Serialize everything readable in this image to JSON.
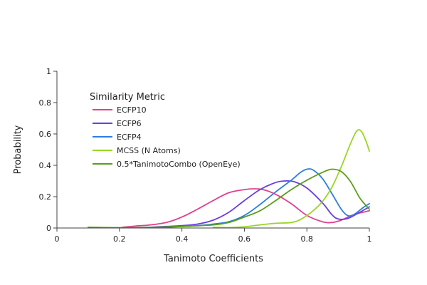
{
  "chart_data": {
    "type": "line",
    "title": "",
    "xlabel": "Tanimoto Coefficients",
    "ylabel": "Probability",
    "xlim": [
      0,
      1
    ],
    "ylim": [
      0,
      1
    ],
    "x_ticks": [
      "0",
      "0.2",
      "0.4",
      "0.6",
      "0.8",
      "1"
    ],
    "y_ticks": [
      "0",
      "0.2",
      "0.4",
      "0.6",
      "0.8",
      "1"
    ],
    "grid": false,
    "legend": {
      "title": "Similarity Metric",
      "position": "top-left"
    },
    "series": [
      {
        "name": "ECFP10",
        "color": "#e0408f",
        "points": [
          [
            0.21,
            0.005
          ],
          [
            0.25,
            0.012
          ],
          [
            0.3,
            0.02
          ],
          [
            0.35,
            0.035
          ],
          [
            0.4,
            0.07
          ],
          [
            0.45,
            0.12
          ],
          [
            0.5,
            0.175
          ],
          [
            0.55,
            0.225
          ],
          [
            0.6,
            0.245
          ],
          [
            0.63,
            0.25
          ],
          [
            0.66,
            0.245
          ],
          [
            0.7,
            0.215
          ],
          [
            0.75,
            0.155
          ],
          [
            0.8,
            0.08
          ],
          [
            0.85,
            0.04
          ],
          [
            0.88,
            0.035
          ],
          [
            0.91,
            0.05
          ],
          [
            0.95,
            0.085
          ],
          [
            1.0,
            0.11
          ]
        ]
      },
      {
        "name": "ECFP6",
        "color": "#6a3de0",
        "points": [
          [
            0.26,
            0.002
          ],
          [
            0.3,
            0.005
          ],
          [
            0.35,
            0.01
          ],
          [
            0.4,
            0.015
          ],
          [
            0.45,
            0.025
          ],
          [
            0.5,
            0.05
          ],
          [
            0.55,
            0.1
          ],
          [
            0.6,
            0.175
          ],
          [
            0.65,
            0.245
          ],
          [
            0.7,
            0.29
          ],
          [
            0.73,
            0.3
          ],
          [
            0.76,
            0.295
          ],
          [
            0.8,
            0.255
          ],
          [
            0.85,
            0.16
          ],
          [
            0.88,
            0.085
          ],
          [
            0.9,
            0.058
          ],
          [
            0.93,
            0.06
          ],
          [
            0.96,
            0.09
          ],
          [
            1.0,
            0.135
          ]
        ]
      },
      {
        "name": "ECFP4",
        "color": "#2a7ee0",
        "points": [
          [
            0.32,
            0.003
          ],
          [
            0.38,
            0.008
          ],
          [
            0.45,
            0.015
          ],
          [
            0.5,
            0.025
          ],
          [
            0.55,
            0.04
          ],
          [
            0.6,
            0.08
          ],
          [
            0.65,
            0.15
          ],
          [
            0.7,
            0.23
          ],
          [
            0.75,
            0.305
          ],
          [
            0.78,
            0.355
          ],
          [
            0.8,
            0.375
          ],
          [
            0.82,
            0.37
          ],
          [
            0.85,
            0.315
          ],
          [
            0.88,
            0.22
          ],
          [
            0.91,
            0.12
          ],
          [
            0.93,
            0.08
          ],
          [
            0.95,
            0.085
          ],
          [
            0.98,
            0.13
          ],
          [
            1.0,
            0.155
          ]
        ]
      },
      {
        "name": "MCSS (N Atoms)",
        "color": "#9ad626",
        "points": [
          [
            0.5,
            0.005
          ],
          [
            0.55,
            0.003
          ],
          [
            0.6,
            0.008
          ],
          [
            0.65,
            0.02
          ],
          [
            0.7,
            0.03
          ],
          [
            0.75,
            0.035
          ],
          [
            0.78,
            0.055
          ],
          [
            0.82,
            0.11
          ],
          [
            0.85,
            0.17
          ],
          [
            0.88,
            0.26
          ],
          [
            0.91,
            0.39
          ],
          [
            0.94,
            0.54
          ],
          [
            0.96,
            0.62
          ],
          [
            0.975,
            0.615
          ],
          [
            0.99,
            0.55
          ],
          [
            1.0,
            0.49
          ]
        ]
      },
      {
        "name": "0.5*TanimotoCombo (OpenEye)",
        "color": "#5a9e1a",
        "points": [
          [
            0.1,
            0.005
          ],
          [
            0.15,
            0.003
          ],
          [
            0.2,
            0.002
          ],
          [
            0.3,
            0.004
          ],
          [
            0.4,
            0.01
          ],
          [
            0.5,
            0.02
          ],
          [
            0.55,
            0.035
          ],
          [
            0.6,
            0.07
          ],
          [
            0.65,
            0.11
          ],
          [
            0.7,
            0.175
          ],
          [
            0.75,
            0.245
          ],
          [
            0.8,
            0.305
          ],
          [
            0.85,
            0.355
          ],
          [
            0.88,
            0.375
          ],
          [
            0.91,
            0.36
          ],
          [
            0.94,
            0.295
          ],
          [
            0.97,
            0.19
          ],
          [
            1.0,
            0.12
          ]
        ]
      }
    ]
  }
}
